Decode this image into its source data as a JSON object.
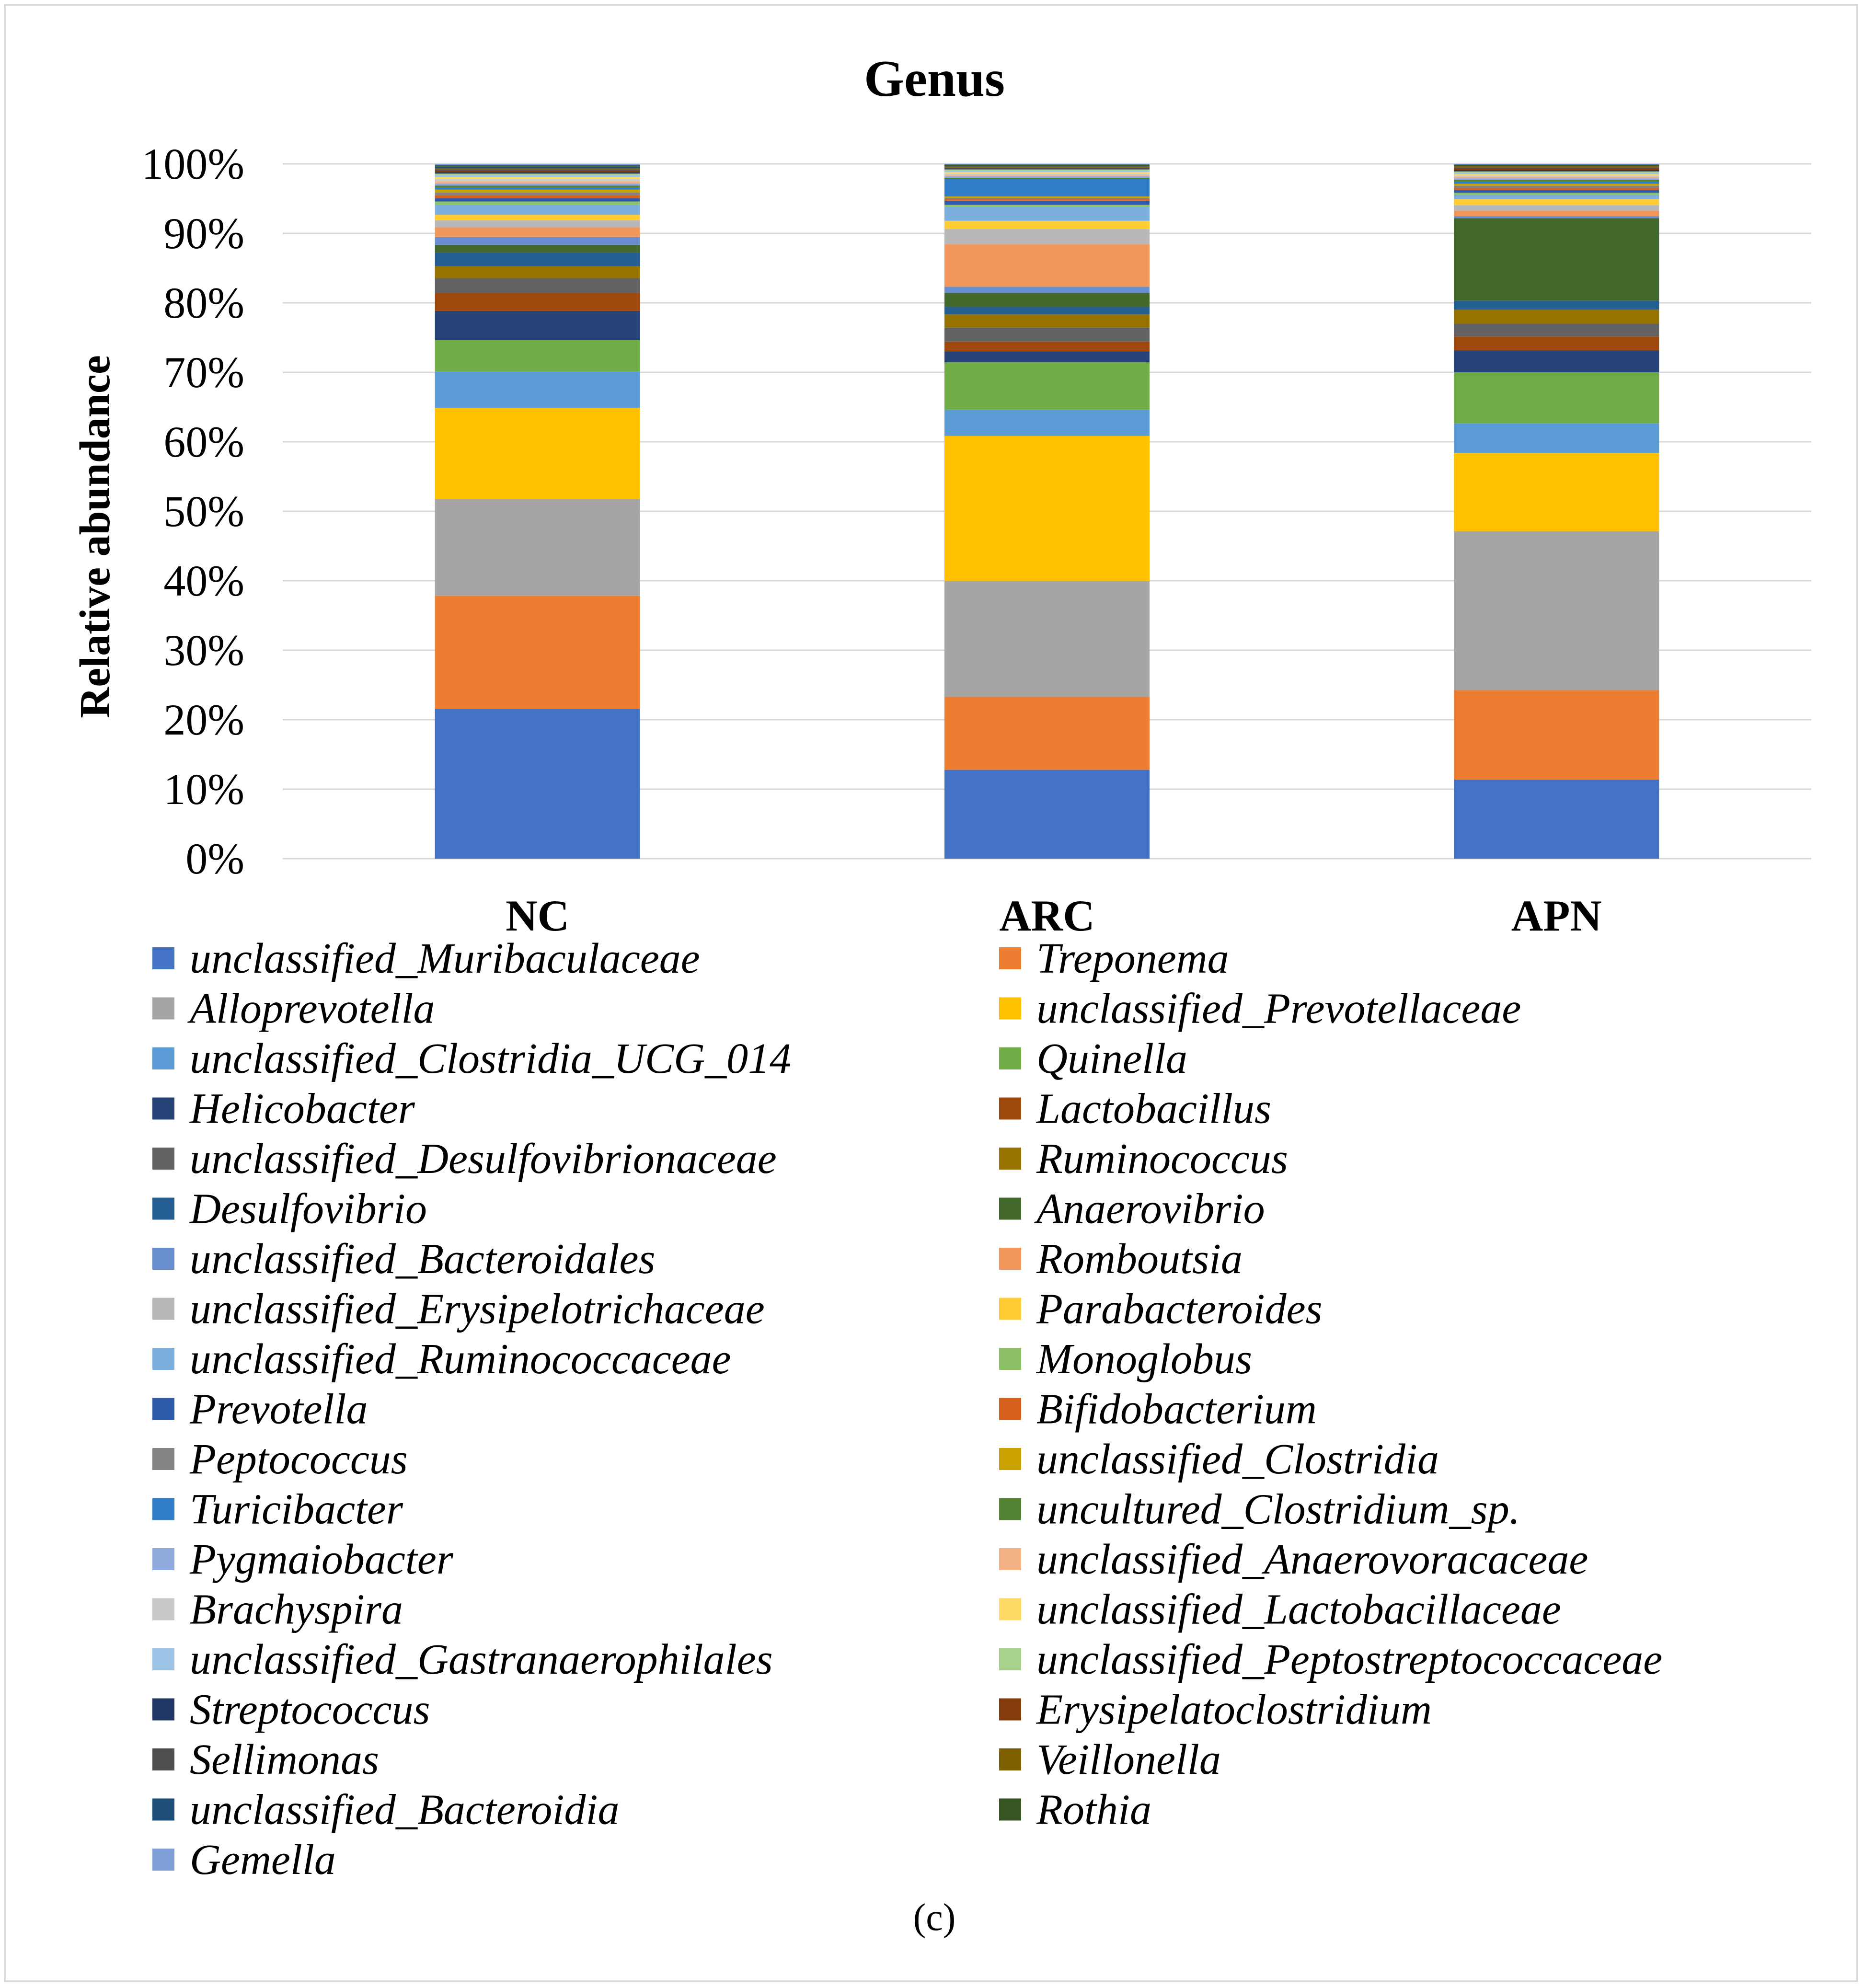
{
  "chart_data": {
    "type": "bar",
    "stacked": true,
    "normalized": true,
    "title": "Genus",
    "xlabel": "",
    "ylabel": "Relative abundance",
    "ylim": [
      0,
      100
    ],
    "yticks": [
      "0%",
      "10%",
      "20%",
      "30%",
      "40%",
      "50%",
      "60%",
      "70%",
      "80%",
      "90%",
      "100%"
    ],
    "categories": [
      "NC",
      "ARC",
      "APN"
    ],
    "grid": true,
    "legend_position": "bottom",
    "panel_label": "(c)",
    "series": [
      {
        "name": "unclassified_Muribaculaceae",
        "color": "#4472C4",
        "values": [
          21.5,
          12.8,
          11.5
        ]
      },
      {
        "name": "Treponema",
        "color": "#ED7D31",
        "values": [
          16.2,
          10.5,
          13.0
        ]
      },
      {
        "name": "Alloprevotella",
        "color": "#A5A5A5",
        "values": [
          13.9,
          16.7,
          23.1
        ]
      },
      {
        "name": "unclassified_Prevotellaceae",
        "color": "#FFC000",
        "values": [
          13.1,
          20.9,
          11.4
        ]
      },
      {
        "name": "unclassified_Clostridia_UCG_014",
        "color": "#5B9BD5",
        "values": [
          5.2,
          3.8,
          4.3
        ]
      },
      {
        "name": "Quinella",
        "color": "#70AD47",
        "values": [
          4.5,
          6.8,
          7.4
        ]
      },
      {
        "name": "Helicobacter",
        "color": "#264478",
        "values": [
          4.2,
          1.6,
          3.2
        ]
      },
      {
        "name": "Lactobacillus",
        "color": "#9E480E",
        "values": [
          2.6,
          1.4,
          2.0
        ]
      },
      {
        "name": "unclassified_Desulfovibrionaceae",
        "color": "#636363",
        "values": [
          2.1,
          2.0,
          1.9
        ]
      },
      {
        "name": "Ruminococcus",
        "color": "#997300",
        "values": [
          1.7,
          1.9,
          2.0
        ]
      },
      {
        "name": "Desulfovibrio",
        "color": "#255E91",
        "values": [
          2.0,
          1.1,
          1.3
        ]
      },
      {
        "name": "Anaerovibrio",
        "color": "#43682B",
        "values": [
          1.1,
          2.0,
          12.0
        ]
      },
      {
        "name": "unclassified_Bacteroidales",
        "color": "#698ED0",
        "values": [
          1.1,
          0.9,
          0.3
        ]
      },
      {
        "name": "Romboutsia",
        "color": "#F1975A",
        "values": [
          1.4,
          6.1,
          0.8
        ]
      },
      {
        "name": "unclassified_Erysipelotrichaceae",
        "color": "#B7B7B7",
        "values": [
          1.0,
          2.2,
          0.8
        ]
      },
      {
        "name": "Parabacteroides",
        "color": "#FFCD33",
        "values": [
          0.8,
          1.2,
          0.9
        ]
      },
      {
        "name": "unclassified_Ruminococcaceae",
        "color": "#7CAFDD",
        "values": [
          1.4,
          2.0,
          0.6
        ]
      },
      {
        "name": "Monoglobus",
        "color": "#8CC168",
        "values": [
          0.5,
          0.3,
          0.3
        ]
      },
      {
        "name": "Prevotella",
        "color": "#2E5AAC",
        "values": [
          0.5,
          0.6,
          0.4
        ]
      },
      {
        "name": "Bifidobacterium",
        "color": "#D5601E",
        "values": [
          0.4,
          0.2,
          0.3
        ]
      },
      {
        "name": "Peptococcus",
        "color": "#848484",
        "values": [
          0.4,
          0.2,
          0.3
        ]
      },
      {
        "name": "unclassified_Clostridia",
        "color": "#C9A100",
        "values": [
          0.4,
          0.2,
          0.3
        ]
      },
      {
        "name": "Turicibacter",
        "color": "#2F7EC7",
        "values": [
          0.3,
          2.5,
          0.3
        ]
      },
      {
        "name": "uncultured_Clostridium_sp.",
        "color": "#548235",
        "values": [
          0.3,
          0.2,
          0.3
        ]
      },
      {
        "name": "Pygmaiobacter",
        "color": "#8FAADC",
        "values": [
          0.3,
          0.2,
          0.2
        ]
      },
      {
        "name": "unclassified_Anaerovoracaceae",
        "color": "#F4B183",
        "values": [
          0.3,
          0.2,
          0.2
        ]
      },
      {
        "name": "Brachyspira",
        "color": "#C9C9C9",
        "values": [
          0.3,
          0.2,
          0.2
        ]
      },
      {
        "name": "unclassified_Lactobacillaceae",
        "color": "#FFD966",
        "values": [
          0.3,
          0.2,
          0.2
        ]
      },
      {
        "name": "unclassified_Gastranaerophilales",
        "color": "#9DC3E6",
        "values": [
          0.3,
          0.2,
          0.2
        ]
      },
      {
        "name": "unclassified_Peptostreptococcaceae",
        "color": "#A9D18E",
        "values": [
          0.2,
          0.2,
          0.2
        ]
      },
      {
        "name": "Streptococcus",
        "color": "#1F3864",
        "values": [
          0.2,
          0.1,
          0.2
        ]
      },
      {
        "name": "Erysipelatoclostridium",
        "color": "#843C0C",
        "values": [
          0.2,
          0.1,
          0.2
        ]
      },
      {
        "name": "Sellimonas",
        "color": "#4F4F4F",
        "values": [
          0.2,
          0.1,
          0.2
        ]
      },
      {
        "name": "Veillonella",
        "color": "#7F6000",
        "values": [
          0.2,
          0.1,
          0.2
        ]
      },
      {
        "name": "unclassified_Bacteroidia",
        "color": "#1F4E79",
        "values": [
          0.2,
          0.1,
          0.1
        ]
      },
      {
        "name": "Rothia",
        "color": "#375623",
        "values": [
          0.2,
          0.2,
          0.1
        ]
      },
      {
        "name": "Gemella",
        "color": "#7F9FD8",
        "values": [
          0.2,
          0.1,
          0.1
        ]
      }
    ]
  }
}
